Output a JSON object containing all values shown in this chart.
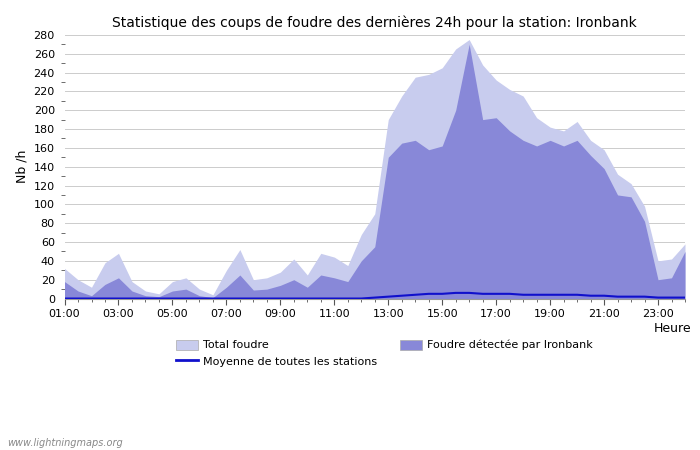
{
  "title": "Statistique des coups de foudre des dernières 24h pour la station: Ironbank",
  "xlabel": "Heure",
  "ylabel": "Nb /h",
  "watermark": "www.lightningmaps.org",
  "ylim": [
    0,
    280
  ],
  "ytick_major": [
    0,
    20,
    40,
    60,
    80,
    100,
    120,
    140,
    160,
    180,
    200,
    220,
    240,
    260,
    280
  ],
  "xtick_positions": [
    1,
    3,
    5,
    7,
    9,
    11,
    13,
    15,
    17,
    19,
    21,
    23
  ],
  "xtick_labels": [
    "01:00",
    "03:00",
    "05:00",
    "07:00",
    "09:00",
    "11:00",
    "13:00",
    "15:00",
    "17:00",
    "19:00",
    "21:00",
    "23:00"
  ],
  "color_total": "#c8ccee",
  "color_station": "#8888d8",
  "color_mean": "#1010cc",
  "hours": [
    1.0,
    1.5,
    2.0,
    2.5,
    3.0,
    3.5,
    4.0,
    4.5,
    5.0,
    5.5,
    6.0,
    6.5,
    7.0,
    7.5,
    8.0,
    8.5,
    9.0,
    9.5,
    10.0,
    10.5,
    11.0,
    11.5,
    12.0,
    12.5,
    13.0,
    13.5,
    14.0,
    14.5,
    15.0,
    15.5,
    16.0,
    16.5,
    17.0,
    17.5,
    18.0,
    18.5,
    19.0,
    19.5,
    20.0,
    20.5,
    21.0,
    21.5,
    22.0,
    22.5,
    23.0,
    23.5,
    24.0
  ],
  "total_foudre": [
    32,
    20,
    12,
    38,
    48,
    18,
    8,
    5,
    18,
    22,
    10,
    4,
    30,
    52,
    20,
    22,
    28,
    42,
    25,
    48,
    44,
    35,
    68,
    90,
    190,
    215,
    235,
    238,
    245,
    265,
    275,
    248,
    232,
    222,
    215,
    192,
    182,
    178,
    188,
    168,
    158,
    132,
    122,
    98,
    40,
    42,
    58
  ],
  "station_foudre": [
    18,
    8,
    3,
    15,
    22,
    8,
    3,
    2,
    8,
    10,
    3,
    1,
    12,
    25,
    9,
    10,
    14,
    20,
    12,
    25,
    22,
    18,
    40,
    55,
    150,
    165,
    168,
    158,
    162,
    200,
    270,
    190,
    192,
    178,
    168,
    162,
    168,
    162,
    168,
    152,
    138,
    110,
    108,
    82,
    20,
    22,
    50
  ],
  "mean_foudre": [
    0,
    0,
    0,
    0,
    0,
    0,
    0,
    0,
    0,
    0,
    0,
    0,
    0,
    0,
    0,
    0,
    0,
    0,
    0,
    0,
    0,
    0,
    0,
    1,
    2,
    3,
    4,
    5,
    5,
    6,
    6,
    5,
    5,
    5,
    4,
    4,
    4,
    4,
    4,
    3,
    3,
    2,
    2,
    2,
    1,
    1,
    1
  ]
}
